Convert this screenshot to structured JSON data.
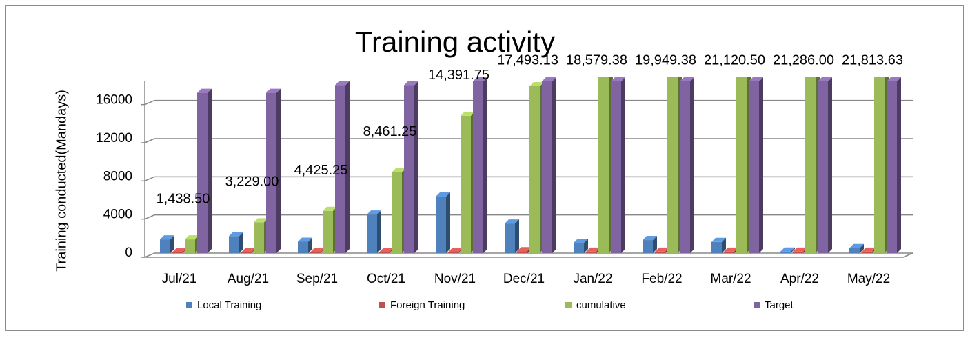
{
  "chart_data": {
    "type": "bar3d",
    "title": "Training activity",
    "y_label": "Training conducted(Mandays)",
    "categories": [
      "Jul/21",
      "Aug/21",
      "Sep/21",
      "Oct/21",
      "Nov/21",
      "Dec/21",
      "Jan/22",
      "Feb/22",
      "Mar/22",
      "Apr/22",
      "May/22"
    ],
    "series": [
      {
        "name": "Local Training",
        "color": "#4f81bd",
        "values": [
          1438.5,
          1790.5,
          1196.25,
          4036,
          5930.5,
          3101.38,
          1086.25,
          1370,
          1171.12,
          165.5,
          527.63
        ]
      },
      {
        "name": "Foreign Training",
        "color": "#c0504d",
        "values": [
          100,
          100,
          100,
          100,
          100,
          200,
          150,
          150,
          150,
          150,
          150
        ]
      },
      {
        "name": "cumulative",
        "color": "#9bbb59",
        "values": [
          1438.5,
          3229,
          4425.25,
          8461.25,
          14391.75,
          17493.13,
          18579.38,
          19949.38,
          21120.5,
          21286,
          21813.63
        ],
        "value_labels": [
          "1,438.50",
          "3,229.00",
          "4,425.25",
          "8,461.25",
          "14,391.75",
          "17,493.13",
          "18,579.38",
          "19,949.38",
          "21,120.50",
          "21,286.00",
          "21,813.63"
        ]
      },
      {
        "name": "Target",
        "color": "#8064a2",
        "values": [
          16800,
          16800,
          17600,
          17600,
          18000,
          18000,
          18000,
          18000,
          18000,
          18000,
          18000
        ]
      }
    ],
    "ylim": [
      0,
      18000
    ],
    "yticks": [
      0,
      4000,
      8000,
      12000,
      16000
    ],
    "grid": true,
    "legend": "bottom"
  }
}
